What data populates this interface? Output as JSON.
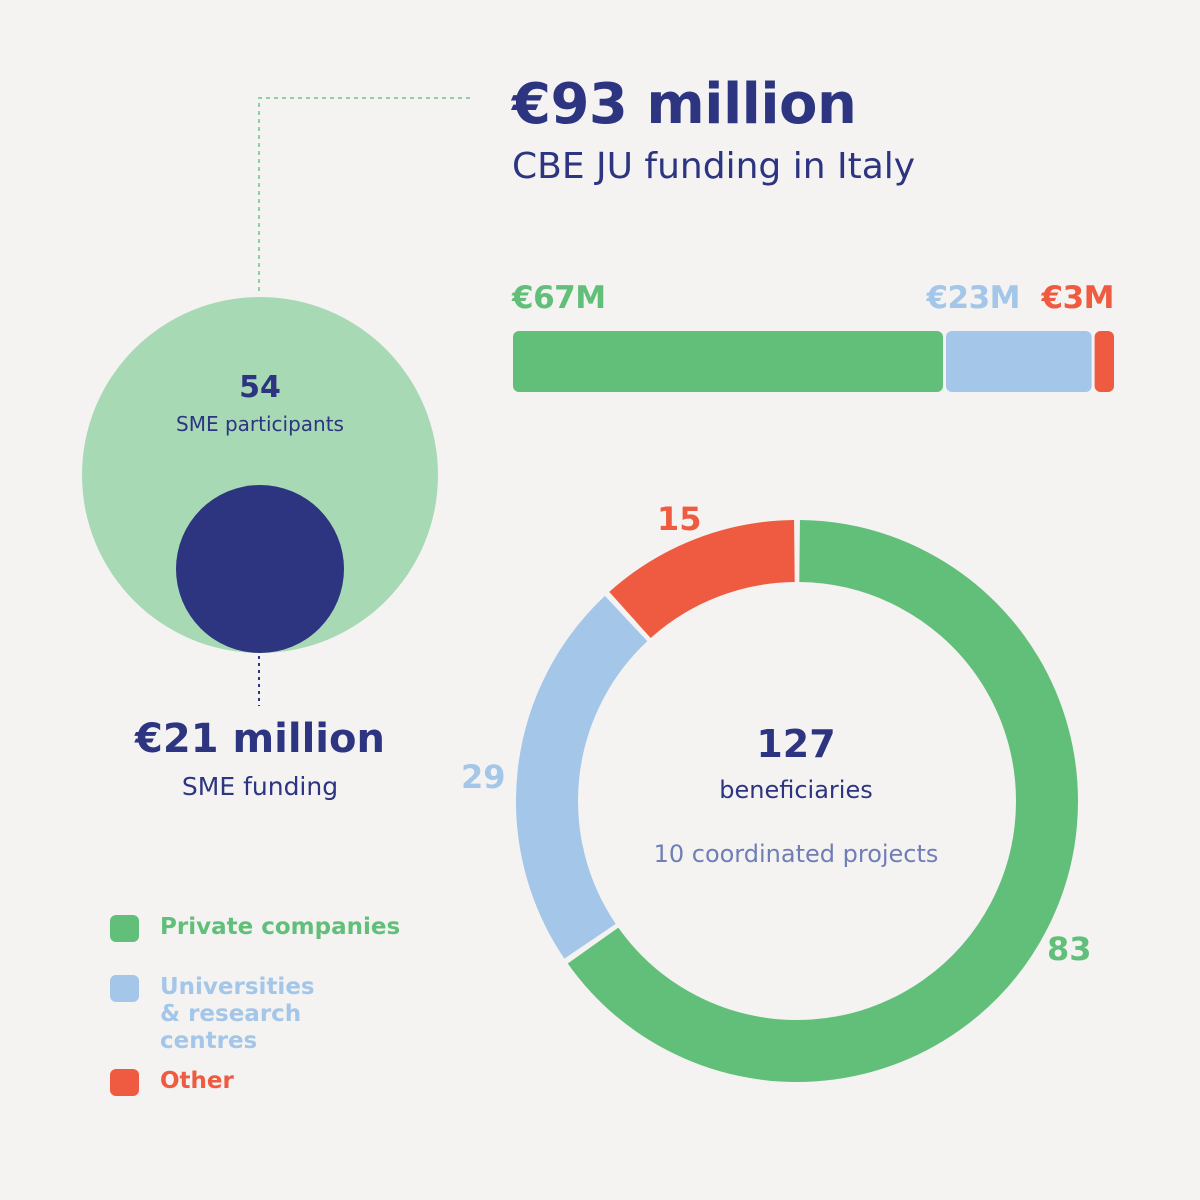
{
  "headline": {
    "amount": "€93 million",
    "subtitle": "CBE JU funding in Italy"
  },
  "sme": {
    "participants_count": "54",
    "participants_label": "SME participants",
    "funding_amount": "€21 million",
    "funding_label": "SME funding"
  },
  "donut_center": {
    "total": "127",
    "total_label": "beneficiaries",
    "projects": "10 coordinated projects"
  },
  "legend": [
    {
      "label": "Private companies",
      "color": "#62bf7a"
    },
    {
      "label": "Universities\n& research centres",
      "color": "#a3c6e9"
    },
    {
      "label": "Other",
      "color": "#ef5b40"
    }
  ],
  "colors": {
    "private": "#62bf7a",
    "research": "#a3c6e9",
    "other": "#ef5b40",
    "navy": "#2d3480",
    "sme_light": "#a7d9b4",
    "background": "#f4f3f2"
  },
  "chart_data": [
    {
      "type": "bar",
      "orientation": "horizontal-stacked",
      "unit": "€M",
      "categories": [
        "Private companies",
        "Universities & research centres",
        "Other"
      ],
      "values": [
        67,
        23,
        3
      ],
      "labels": [
        "€67M",
        "€23M",
        "€3M"
      ]
    },
    {
      "type": "pie",
      "style": "donut",
      "categories": [
        "Private companies",
        "Universities & research centres",
        "Other"
      ],
      "values": [
        83,
        29,
        15
      ],
      "labels": [
        "83",
        "29",
        "15"
      ]
    },
    {
      "type": "bubble",
      "items": [
        {
          "label": "SME participants",
          "value": 54
        },
        {
          "label": "SME funding (€M)",
          "value": 21
        }
      ]
    }
  ]
}
